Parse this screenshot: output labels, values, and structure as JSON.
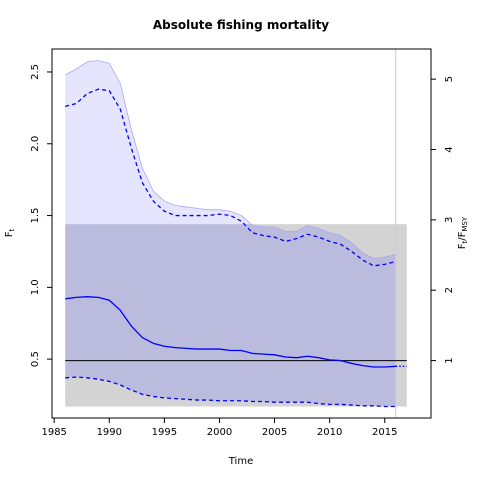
{
  "chart_data": {
    "type": "line",
    "title": "Absolute fishing mortality",
    "xlabel": "Time",
    "ylabel": {
      "main": "F",
      "sub": "t"
    },
    "ylabel_right": {
      "num_main": "F",
      "num_sub": "t",
      "den_main": "F",
      "den_sub": "MSY"
    },
    "xlim": [
      1984.8,
      2019.2
    ],
    "ylim": [
      0.09,
      2.66
    ],
    "right_axis_ratio": 0.49,
    "x_ticks": [
      1985,
      1990,
      1995,
      2000,
      2005,
      2010,
      2015
    ],
    "y_ticks": [
      0.5,
      1.0,
      1.5,
      2.0,
      2.5
    ],
    "y_tick_labels": [
      "0.5",
      "1.0",
      "1.5",
      "2.0",
      "2.5"
    ],
    "right_ticks": [
      1,
      2,
      3,
      4,
      5
    ],
    "reference_line": {
      "name": "F_MSY",
      "y": 0.49
    },
    "vertical_marker": {
      "x": 2016
    },
    "fmsy_band": {
      "x": [
        1986,
        2017
      ],
      "lower": 0.17,
      "upper": 1.44
    },
    "series": [
      {
        "key": "median",
        "style": "solid",
        "x": [
          1986,
          1987,
          1988,
          1989,
          1990,
          1991,
          1992,
          1993,
          1994,
          1995,
          1996,
          1997,
          1998,
          1999,
          2000,
          2001,
          2002,
          2003,
          2004,
          2005,
          2006,
          2007,
          2008,
          2009,
          2010,
          2011,
          2012,
          2013,
          2014,
          2015,
          2016
        ],
        "y": [
          0.92,
          0.93,
          0.935,
          0.93,
          0.91,
          0.84,
          0.73,
          0.65,
          0.61,
          0.59,
          0.58,
          0.575,
          0.57,
          0.57,
          0.57,
          0.56,
          0.56,
          0.54,
          0.535,
          0.53,
          0.515,
          0.51,
          0.52,
          0.51,
          0.495,
          0.49,
          0.47,
          0.455,
          0.445,
          0.445,
          0.45
        ]
      },
      {
        "key": "upper_ci",
        "style": "dashed",
        "x": [
          1986,
          1987,
          1988,
          1989,
          1990,
          1991,
          1992,
          1993,
          1994,
          1995,
          1996,
          1997,
          1998,
          1999,
          2000,
          2001,
          2002,
          2003,
          2004,
          2005,
          2006,
          2007,
          2008,
          2009,
          2010,
          2011,
          2012,
          2013,
          2014,
          2015,
          2016
        ],
        "y": [
          2.26,
          2.28,
          2.35,
          2.38,
          2.37,
          2.24,
          1.97,
          1.73,
          1.6,
          1.53,
          1.5,
          1.5,
          1.5,
          1.5,
          1.51,
          1.5,
          1.46,
          1.38,
          1.36,
          1.35,
          1.32,
          1.34,
          1.37,
          1.35,
          1.32,
          1.3,
          1.25,
          1.19,
          1.15,
          1.16,
          1.18
        ]
      },
      {
        "key": "lower_ci",
        "style": "dashed",
        "x": [
          1986,
          1987,
          1988,
          1989,
          1990,
          1991,
          1992,
          1993,
          1994,
          1995,
          1996,
          1997,
          1998,
          1999,
          2000,
          2001,
          2002,
          2003,
          2004,
          2005,
          2006,
          2007,
          2008,
          2009,
          2010,
          2011,
          2012,
          2013,
          2014,
          2015,
          2016
        ],
        "y": [
          0.37,
          0.375,
          0.37,
          0.36,
          0.345,
          0.32,
          0.285,
          0.255,
          0.24,
          0.23,
          0.225,
          0.22,
          0.215,
          0.215,
          0.21,
          0.21,
          0.21,
          0.205,
          0.205,
          0.2,
          0.2,
          0.2,
          0.2,
          0.19,
          0.185,
          0.185,
          0.18,
          0.175,
          0.175,
          0.17,
          0.17
        ]
      }
    ],
    "outer_envelope": {
      "x": [
        1986,
        1987,
        1988,
        1989,
        1990,
        1991,
        1992,
        1993,
        1994,
        1995,
        1996,
        1997,
        1998,
        1999,
        2000,
        2001,
        2002,
        2003,
        2004,
        2005,
        2006,
        2007,
        2008,
        2009,
        2010,
        2011,
        2012,
        2013,
        2014,
        2015,
        2016
      ],
      "upper": [
        2.48,
        2.52,
        2.57,
        2.58,
        2.56,
        2.42,
        2.1,
        1.83,
        1.67,
        1.6,
        1.57,
        1.56,
        1.55,
        1.54,
        1.54,
        1.53,
        1.5,
        1.43,
        1.42,
        1.42,
        1.39,
        1.39,
        1.43,
        1.41,
        1.38,
        1.36,
        1.31,
        1.24,
        1.2,
        1.21,
        1.23
      ],
      "lower": [
        0.37,
        0.375,
        0.37,
        0.36,
        0.345,
        0.32,
        0.285,
        0.255,
        0.24,
        0.23,
        0.225,
        0.22,
        0.215,
        0.215,
        0.21,
        0.21,
        0.21,
        0.205,
        0.205,
        0.2,
        0.2,
        0.2,
        0.2,
        0.19,
        0.185,
        0.185,
        0.18,
        0.175,
        0.175,
        0.17,
        0.17
      ]
    },
    "projection": {
      "x": [
        2016,
        2017
      ],
      "y": [
        0.45,
        0.45
      ],
      "style": "dotted"
    },
    "colors": {
      "line": "#0000ff",
      "envelope_fill": "#e5e5ff",
      "envelope_edge": "#a8a8f0",
      "band_fill": "#d3d3d3",
      "overlap_fill": "#bbbbdd",
      "reference": "#000000",
      "marker": "#cccccc"
    },
    "grid": false,
    "legend": "none"
  }
}
